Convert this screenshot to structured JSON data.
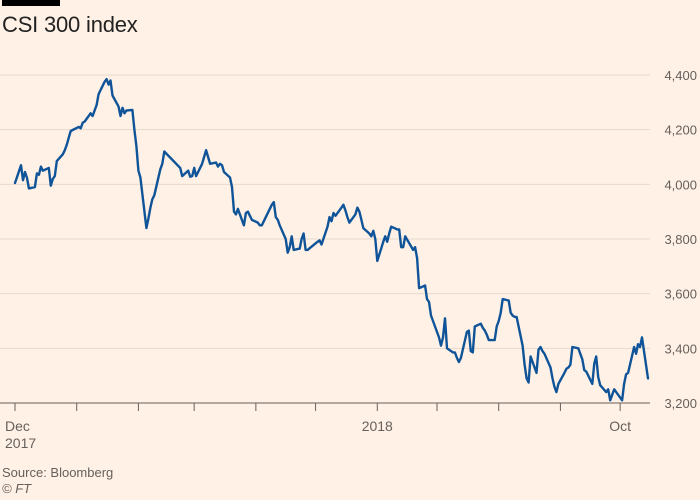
{
  "chart_data": {
    "type": "line",
    "title": "CSI 300 index",
    "xlabel": "",
    "ylabel": "",
    "ylim": [
      3200,
      4400
    ],
    "y_ticks": [
      {
        "value": 4400,
        "label": "4,400"
      },
      {
        "value": 4200,
        "label": "4,200"
      },
      {
        "value": 4000,
        "label": "4,000"
      },
      {
        "value": 3800,
        "label": "3,800"
      },
      {
        "value": 3600,
        "label": "3,600"
      },
      {
        "value": 3400,
        "label": "3,400"
      },
      {
        "value": 3200,
        "label": "3,200"
      }
    ],
    "x_range": [
      "2017-12-01",
      "2018-10-15"
    ],
    "x_month_ticks": [
      "2017-12-01",
      "2018-01-01",
      "2018-02-01",
      "2018-03-01",
      "2018-04-01",
      "2018-05-01",
      "2018-06-01",
      "2018-07-01",
      "2018-08-01",
      "2018-09-01",
      "2018-10-01"
    ],
    "x_labels": [
      {
        "date": "2017-12-01",
        "line1": "Dec",
        "line2": "2017"
      },
      {
        "date": "2018-06-01",
        "line1": "2018",
        "line2": ""
      },
      {
        "date": "2018-10-01",
        "line1": "Oct",
        "line2": ""
      }
    ],
    "grid": true,
    "color": "#0f5499",
    "series": [
      {
        "points": [
          [
            "2017-12-01",
            4005
          ],
          [
            "2017-12-04",
            4070
          ],
          [
            "2017-12-05",
            4015
          ],
          [
            "2017-12-06",
            4045
          ],
          [
            "2017-12-07",
            4025
          ],
          [
            "2017-12-08",
            3985
          ],
          [
            "2017-12-11",
            3990
          ],
          [
            "2017-12-12",
            4040
          ],
          [
            "2017-12-13",
            4035
          ],
          [
            "2017-12-14",
            4065
          ],
          [
            "2017-12-15",
            4050
          ],
          [
            "2017-12-18",
            4060
          ],
          [
            "2017-12-19",
            3995
          ],
          [
            "2017-12-20",
            4020
          ],
          [
            "2017-12-21",
            4030
          ],
          [
            "2017-12-22",
            4085
          ],
          [
            "2017-12-25",
            4110
          ],
          [
            "2017-12-26",
            4125
          ],
          [
            "2017-12-27",
            4145
          ],
          [
            "2017-12-28",
            4170
          ],
          [
            "2017-12-29",
            4195
          ],
          [
            "2018-01-02",
            4210
          ],
          [
            "2018-01-03",
            4205
          ],
          [
            "2018-01-04",
            4225
          ],
          [
            "2018-01-05",
            4230
          ],
          [
            "2018-01-08",
            4260
          ],
          [
            "2018-01-09",
            4250
          ],
          [
            "2018-01-10",
            4270
          ],
          [
            "2018-01-11",
            4290
          ],
          [
            "2018-01-12",
            4330
          ],
          [
            "2018-01-15",
            4375
          ],
          [
            "2018-01-16",
            4385
          ],
          [
            "2018-01-17",
            4365
          ],
          [
            "2018-01-18",
            4380
          ],
          [
            "2018-01-19",
            4325
          ],
          [
            "2018-01-22",
            4285
          ],
          [
            "2018-01-23",
            4250
          ],
          [
            "2018-01-24",
            4280
          ],
          [
            "2018-01-25",
            4260
          ],
          [
            "2018-01-26",
            4270
          ],
          [
            "2018-01-29",
            4272
          ],
          [
            "2018-01-30",
            4200
          ],
          [
            "2018-01-31",
            4140
          ],
          [
            "2018-02-01",
            4050
          ],
          [
            "2018-02-02",
            4025
          ],
          [
            "2018-02-05",
            3840
          ],
          [
            "2018-02-06",
            3875
          ],
          [
            "2018-02-07",
            3915
          ],
          [
            "2018-02-08",
            3945
          ],
          [
            "2018-02-09",
            3960
          ],
          [
            "2018-02-12",
            4055
          ],
          [
            "2018-02-13",
            4075
          ],
          [
            "2018-02-14",
            4120
          ],
          [
            "2018-02-22",
            4060
          ],
          [
            "2018-02-23",
            4030
          ],
          [
            "2018-02-26",
            4050
          ],
          [
            "2018-02-27",
            4028
          ],
          [
            "2018-02-28",
            4030
          ],
          [
            "2018-03-01",
            4060
          ],
          [
            "2018-03-02",
            4030
          ],
          [
            "2018-03-05",
            4075
          ],
          [
            "2018-03-06",
            4100
          ],
          [
            "2018-03-07",
            4125
          ],
          [
            "2018-03-08",
            4100
          ],
          [
            "2018-03-09",
            4075
          ],
          [
            "2018-03-12",
            4080
          ],
          [
            "2018-03-13",
            4065
          ],
          [
            "2018-03-14",
            4075
          ],
          [
            "2018-03-15",
            4070
          ],
          [
            "2018-03-16",
            4045
          ],
          [
            "2018-03-19",
            4025
          ],
          [
            "2018-03-20",
            3990
          ],
          [
            "2018-03-21",
            3900
          ],
          [
            "2018-03-22",
            3890
          ],
          [
            "2018-03-23",
            3910
          ],
          [
            "2018-03-26",
            3850
          ],
          [
            "2018-03-27",
            3895
          ],
          [
            "2018-03-28",
            3900
          ],
          [
            "2018-03-29",
            3885
          ],
          [
            "2018-03-30",
            3870
          ],
          [
            "2018-04-02",
            3860
          ],
          [
            "2018-04-03",
            3850
          ],
          [
            "2018-04-04",
            3850
          ],
          [
            "2018-04-09",
            3925
          ],
          [
            "2018-04-10",
            3935
          ],
          [
            "2018-04-11",
            3880
          ],
          [
            "2018-04-12",
            3870
          ],
          [
            "2018-04-13",
            3850
          ],
          [
            "2018-04-16",
            3800
          ],
          [
            "2018-04-17",
            3750
          ],
          [
            "2018-04-18",
            3770
          ],
          [
            "2018-04-19",
            3810
          ],
          [
            "2018-04-20",
            3760
          ],
          [
            "2018-04-23",
            3765
          ],
          [
            "2018-04-24",
            3800
          ],
          [
            "2018-04-25",
            3820
          ],
          [
            "2018-04-26",
            3760
          ],
          [
            "2018-04-27",
            3760
          ],
          [
            "2018-05-02",
            3790
          ],
          [
            "2018-05-03",
            3795
          ],
          [
            "2018-05-04",
            3780
          ],
          [
            "2018-05-07",
            3845
          ],
          [
            "2018-05-08",
            3880
          ],
          [
            "2018-05-09",
            3865
          ],
          [
            "2018-05-10",
            3895
          ],
          [
            "2018-05-11",
            3885
          ],
          [
            "2018-05-14",
            3915
          ],
          [
            "2018-05-15",
            3925
          ],
          [
            "2018-05-16",
            3905
          ],
          [
            "2018-05-17",
            3880
          ],
          [
            "2018-05-18",
            3860
          ],
          [
            "2018-05-21",
            3890
          ],
          [
            "2018-05-22",
            3915
          ],
          [
            "2018-05-23",
            3900
          ],
          [
            "2018-05-24",
            3870
          ],
          [
            "2018-05-25",
            3840
          ],
          [
            "2018-05-28",
            3820
          ],
          [
            "2018-05-29",
            3810
          ],
          [
            "2018-05-30",
            3830
          ],
          [
            "2018-05-31",
            3800
          ],
          [
            "2018-06-01",
            3720
          ],
          [
            "2018-06-04",
            3790
          ],
          [
            "2018-06-05",
            3810
          ],
          [
            "2018-06-06",
            3790
          ],
          [
            "2018-06-07",
            3820
          ],
          [
            "2018-06-08",
            3845
          ],
          [
            "2018-06-11",
            3835
          ],
          [
            "2018-06-12",
            3835
          ],
          [
            "2018-06-13",
            3770
          ],
          [
            "2018-06-14",
            3770
          ],
          [
            "2018-06-15",
            3810
          ],
          [
            "2018-06-19",
            3760
          ],
          [
            "2018-06-20",
            3770
          ],
          [
            "2018-06-21",
            3730
          ],
          [
            "2018-06-22",
            3620
          ],
          [
            "2018-06-25",
            3630
          ],
          [
            "2018-06-26",
            3580
          ],
          [
            "2018-06-27",
            3570
          ],
          [
            "2018-06-28",
            3520
          ],
          [
            "2018-06-29",
            3500
          ],
          [
            "2018-07-02",
            3440
          ],
          [
            "2018-07-03",
            3410
          ],
          [
            "2018-07-04",
            3440
          ],
          [
            "2018-07-05",
            3510
          ],
          [
            "2018-07-06",
            3400
          ],
          [
            "2018-07-09",
            3385
          ],
          [
            "2018-07-10",
            3385
          ],
          [
            "2018-07-11",
            3365
          ],
          [
            "2018-07-12",
            3350
          ],
          [
            "2018-07-13",
            3365
          ],
          [
            "2018-07-16",
            3460
          ],
          [
            "2018-07-17",
            3465
          ],
          [
            "2018-07-18",
            3390
          ],
          [
            "2018-07-19",
            3385
          ],
          [
            "2018-07-20",
            3480
          ],
          [
            "2018-07-23",
            3490
          ],
          [
            "2018-07-24",
            3475
          ],
          [
            "2018-07-25",
            3465
          ],
          [
            "2018-07-26",
            3450
          ],
          [
            "2018-07-27",
            3430
          ],
          [
            "2018-07-30",
            3430
          ],
          [
            "2018-07-31",
            3480
          ],
          [
            "2018-08-01",
            3500
          ],
          [
            "2018-08-02",
            3530
          ],
          [
            "2018-08-03",
            3580
          ],
          [
            "2018-08-06",
            3575
          ],
          [
            "2018-08-07",
            3530
          ],
          [
            "2018-08-08",
            3520
          ],
          [
            "2018-08-09",
            3515
          ],
          [
            "2018-08-10",
            3515
          ],
          [
            "2018-08-13",
            3410
          ],
          [
            "2018-08-14",
            3340
          ],
          [
            "2018-08-15",
            3290
          ],
          [
            "2018-08-16",
            3275
          ],
          [
            "2018-08-17",
            3370
          ],
          [
            "2018-08-20",
            3310
          ],
          [
            "2018-08-21",
            3395
          ],
          [
            "2018-08-22",
            3405
          ],
          [
            "2018-08-23",
            3390
          ],
          [
            "2018-08-24",
            3380
          ],
          [
            "2018-08-27",
            3330
          ],
          [
            "2018-08-28",
            3290
          ],
          [
            "2018-08-29",
            3260
          ],
          [
            "2018-08-30",
            3240
          ],
          [
            "2018-08-31",
            3270
          ],
          [
            "2018-09-03",
            3310
          ],
          [
            "2018-09-04",
            3325
          ],
          [
            "2018-09-05",
            3330
          ],
          [
            "2018-09-06",
            3340
          ],
          [
            "2018-09-07",
            3405
          ],
          [
            "2018-09-10",
            3400
          ],
          [
            "2018-09-11",
            3380
          ],
          [
            "2018-09-12",
            3360
          ],
          [
            "2018-09-13",
            3320
          ],
          [
            "2018-09-14",
            3315
          ],
          [
            "2018-09-17",
            3270
          ],
          [
            "2018-09-18",
            3345
          ],
          [
            "2018-09-19",
            3370
          ],
          [
            "2018-09-20",
            3295
          ],
          [
            "2018-09-21",
            3265
          ],
          [
            "2018-09-24",
            3240
          ],
          [
            "2018-09-25",
            3250
          ],
          [
            "2018-09-26",
            3210
          ],
          [
            "2018-09-27",
            3230
          ],
          [
            "2018-09-28",
            3250
          ],
          [
            "2018-10-02",
            3210
          ],
          [
            "2018-10-03",
            3270
          ],
          [
            "2018-10-04",
            3305
          ],
          [
            "2018-10-05",
            3310
          ],
          [
            "2018-10-08",
            3405
          ],
          [
            "2018-10-09",
            3380
          ],
          [
            "2018-10-10",
            3415
          ],
          [
            "2018-10-11",
            3405
          ],
          [
            "2018-10-12",
            3440
          ],
          [
            "2018-10-15",
            3290
          ]
        ]
      }
    ]
  },
  "footer": {
    "source": "Source: Bloomberg",
    "credit": "© FT"
  }
}
